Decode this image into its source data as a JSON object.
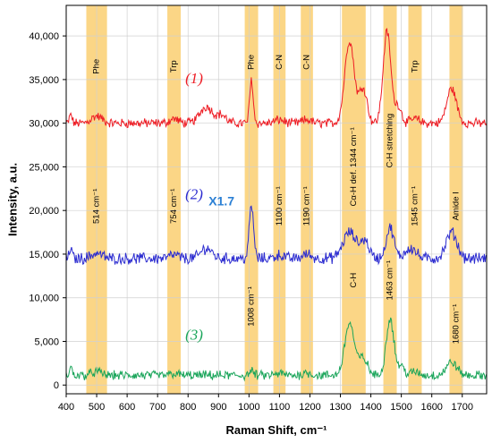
{
  "chart_data": {
    "type": "line",
    "xlabel": "Raman Shift, cm⁻¹",
    "ylabel": "Intensity, a.u.",
    "xlim": [
      400,
      1780
    ],
    "ylim": [
      -1000,
      43500
    ],
    "grid": true,
    "x_ticks": [
      "400",
      "500",
      "600",
      "700",
      "800",
      "900",
      "1000",
      "1100",
      "1200",
      "1300",
      "1400",
      "1500",
      "1600",
      "1700"
    ],
    "x_tick_values": [
      400,
      500,
      600,
      700,
      800,
      900,
      1000,
      1100,
      1200,
      1300,
      1400,
      1500,
      1600,
      1700
    ],
    "y_ticks": [
      "0",
      "5,000",
      "10,000",
      "15,000",
      "20,000",
      "25,000",
      "30,000",
      "35,000",
      "40,000"
    ],
    "y_tick_values": [
      0,
      5000,
      10000,
      15000,
      20000,
      25000,
      30000,
      35000,
      40000
    ],
    "bands": [
      {
        "center": 500,
        "width": 68,
        "labels": [
          {
            "text": "Phe",
            "y": 36500
          },
          {
            "text": "514 cm⁻¹",
            "y": 20500
          }
        ]
      },
      {
        "center": 754,
        "width": 44,
        "labels": [
          {
            "text": "Trp",
            "y": 36500
          },
          {
            "text": "754 cm⁻¹",
            "y": 20500
          }
        ]
      },
      {
        "center": 1008,
        "width": 44,
        "labels": [
          {
            "text": "Phe",
            "y": 37000
          },
          {
            "text": "1008 cm⁻¹",
            "y": 9000
          }
        ]
      },
      {
        "center": 1100,
        "width": 40,
        "labels": [
          {
            "text": "C-N",
            "y": 37000
          },
          {
            "text": "1100 cm⁻¹",
            "y": 20500
          }
        ]
      },
      {
        "center": 1190,
        "width": 40,
        "labels": [
          {
            "text": "C-N",
            "y": 37000
          },
          {
            "text": "1190 cm⁻¹",
            "y": 20500
          }
        ]
      },
      {
        "center": 1344,
        "width": 78,
        "labels": [
          {
            "text": "Cα-H def. 1344 cm⁻¹",
            "y": 25000
          },
          {
            "text": "C-H",
            "y": 12000
          }
        ]
      },
      {
        "center": 1463,
        "width": 44,
        "labels": [
          {
            "text": "C-H stretching",
            "y": 28000
          },
          {
            "text": "1463 cm⁻¹",
            "y": 12000
          }
        ]
      },
      {
        "center": 1545,
        "width": 44,
        "labels": [
          {
            "text": "Trp",
            "y": 36500
          },
          {
            "text": "1545 cm⁻¹",
            "y": 20500
          }
        ]
      },
      {
        "center": 1680,
        "width": 44,
        "labels": [
          {
            "text": "Amide I",
            "y": 20500
          },
          {
            "text": "1680 cm⁻¹",
            "y": 7000
          }
        ]
      }
    ],
    "series": [
      {
        "name": "(1)",
        "color": "#ee1c24",
        "baseline": 30000,
        "noise": 450,
        "peaks": [
          [
            500,
            800,
            25
          ],
          [
            754,
            500,
            20
          ],
          [
            860,
            1900,
            30
          ],
          [
            910,
            900,
            20
          ],
          [
            1008,
            5000,
            8
          ],
          [
            1100,
            400,
            20
          ],
          [
            1190,
            400,
            20
          ],
          [
            1330,
            9500,
            22
          ],
          [
            1375,
            4000,
            18
          ],
          [
            1453,
            10500,
            18
          ],
          [
            1490,
            2000,
            15
          ],
          [
            1545,
            500,
            20
          ],
          [
            1665,
            4000,
            22
          ]
        ],
        "label": {
          "text": "(1)",
          "x": 820,
          "y": 34600
        },
        "scale_label": {
          "text": "",
          "x": 1030,
          "y": 20500
        }
      },
      {
        "name": "(2)",
        "color": "#2b2bd0",
        "baseline": 14500,
        "noise": 550,
        "peaks": [
          [
            500,
            600,
            25
          ],
          [
            754,
            400,
            20
          ],
          [
            860,
            1200,
            25
          ],
          [
            1008,
            6000,
            10
          ],
          [
            1100,
            400,
            20
          ],
          [
            1190,
            500,
            20
          ],
          [
            1330,
            3000,
            30
          ],
          [
            1380,
            2000,
            20
          ],
          [
            1463,
            3500,
            18
          ],
          [
            1530,
            1200,
            25
          ],
          [
            1665,
            3000,
            25
          ]
        ],
        "label": {
          "text": "(2)",
          "x": 820,
          "y": 21300
        },
        "scale_label": {
          "text": "X1.7",
          "x": 910,
          "y": 20600
        }
      },
      {
        "name": "(3)",
        "color": "#1aa55a",
        "baseline": 1100,
        "noise": 450,
        "peaks": [
          [
            500,
            400,
            25
          ],
          [
            754,
            200,
            20
          ],
          [
            1008,
            500,
            10
          ],
          [
            1100,
            200,
            20
          ],
          [
            1190,
            300,
            20
          ],
          [
            1330,
            6000,
            22
          ],
          [
            1375,
            2000,
            20
          ],
          [
            1463,
            6500,
            18
          ],
          [
            1500,
            1000,
            15
          ],
          [
            1545,
            400,
            20
          ],
          [
            1665,
            1500,
            25
          ]
        ],
        "label": {
          "text": "(3)",
          "x": 820,
          "y": 5200
        },
        "scale_label": {
          "text": "",
          "x": 0,
          "y": 0
        }
      }
    ]
  }
}
